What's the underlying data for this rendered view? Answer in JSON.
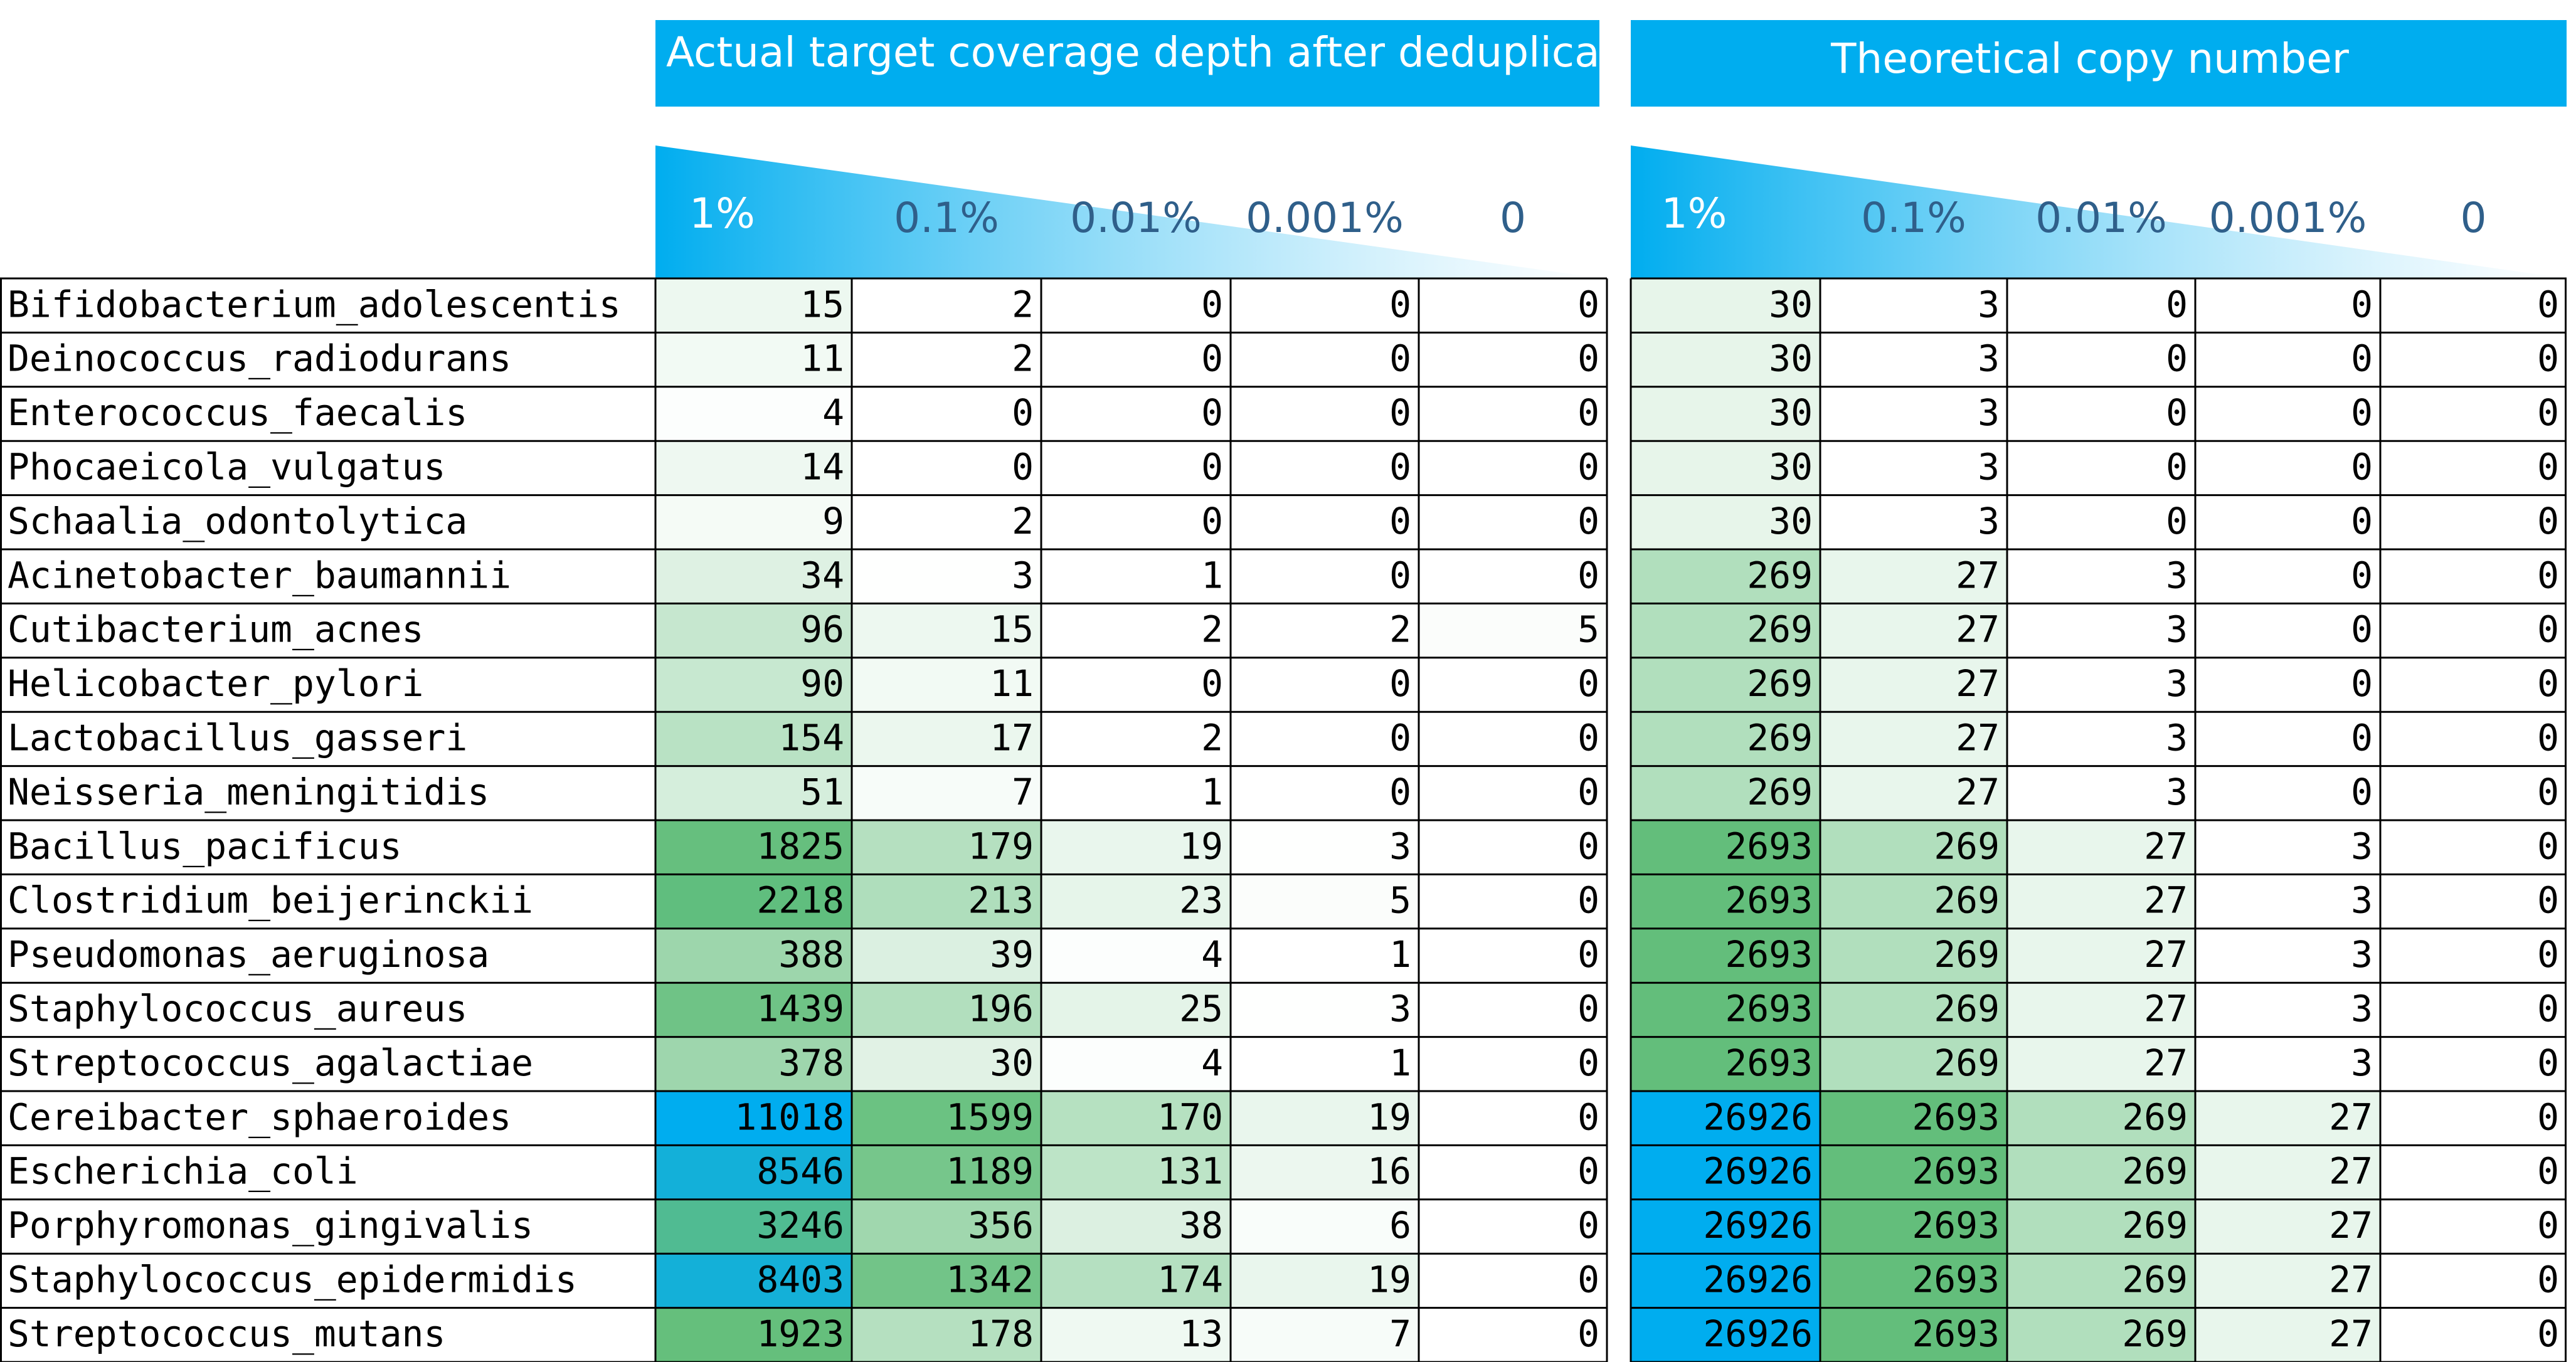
{
  "chart_data": [
    {
      "type": "heatmap",
      "title": "Actual target coverage depth after deduplication",
      "columns": [
        "1%",
        "0.1%",
        "0.01%",
        "0.001%",
        "0"
      ],
      "rows": [
        "Bifidobacterium_adolescentis",
        "Deinococcus_radiodurans",
        "Enterococcus_faecalis",
        "Phocaeicola_vulgatus",
        "Schaalia_odontolytica",
        "Acinetobacter_baumannii",
        "Cutibacterium_acnes",
        "Helicobacter_pylori",
        "Lactobacillus_gasseri",
        "Neisseria_meningitidis",
        "Bacillus_pacificus",
        "Clostridium_beijerinckii",
        "Pseudomonas_aeruginosa",
        "Staphylococcus_aureus",
        "Streptococcus_agalactiae",
        "Cereibacter_sphaeroides",
        "Escherichia_coli",
        "Porphyromonas_gingivalis",
        "Staphylococcus_epidermidis",
        "Streptococcus_mutans"
      ],
      "values": [
        [
          15,
          2,
          0,
          0,
          0
        ],
        [
          11,
          2,
          0,
          0,
          0
        ],
        [
          4,
          0,
          0,
          0,
          0
        ],
        [
          14,
          0,
          0,
          0,
          0
        ],
        [
          9,
          2,
          0,
          0,
          0
        ],
        [
          34,
          3,
          1,
          0,
          0
        ],
        [
          96,
          15,
          2,
          2,
          5
        ],
        [
          90,
          11,
          0,
          0,
          0
        ],
        [
          154,
          17,
          2,
          0,
          0
        ],
        [
          51,
          7,
          1,
          0,
          0
        ],
        [
          1825,
          179,
          19,
          3,
          0
        ],
        [
          2218,
          213,
          23,
          5,
          0
        ],
        [
          388,
          39,
          4,
          1,
          0
        ],
        [
          1439,
          196,
          25,
          3,
          0
        ],
        [
          378,
          30,
          4,
          1,
          0
        ],
        [
          11018,
          1599,
          170,
          19,
          0
        ],
        [
          8546,
          1189,
          131,
          16,
          0
        ],
        [
          3246,
          356,
          38,
          6,
          0
        ],
        [
          8403,
          1342,
          174,
          19,
          0
        ],
        [
          1923,
          178,
          13,
          7,
          0
        ]
      ]
    },
    {
      "type": "heatmap",
      "title": "Theoretical copy number",
      "columns": [
        "1%",
        "0.1%",
        "0.01%",
        "0.001%",
        "0"
      ],
      "values": [
        [
          30,
          3,
          0,
          0,
          0
        ],
        [
          30,
          3,
          0,
          0,
          0
        ],
        [
          30,
          3,
          0,
          0,
          0
        ],
        [
          30,
          3,
          0,
          0,
          0
        ],
        [
          30,
          3,
          0,
          0,
          0
        ],
        [
          269,
          27,
          3,
          0,
          0
        ],
        [
          269,
          27,
          3,
          0,
          0
        ],
        [
          269,
          27,
          3,
          0,
          0
        ],
        [
          269,
          27,
          3,
          0,
          0
        ],
        [
          269,
          27,
          3,
          0,
          0
        ],
        [
          2693,
          269,
          27,
          3,
          0
        ],
        [
          2693,
          269,
          27,
          3,
          0
        ],
        [
          2693,
          269,
          27,
          3,
          0
        ],
        [
          2693,
          269,
          27,
          3,
          0
        ],
        [
          2693,
          269,
          27,
          3,
          0
        ],
        [
          26926,
          2693,
          269,
          27,
          0
        ],
        [
          26926,
          2693,
          269,
          27,
          0
        ],
        [
          26926,
          2693,
          269,
          27,
          0
        ],
        [
          26926,
          2693,
          269,
          27,
          0
        ],
        [
          26926,
          2693,
          269,
          27,
          0
        ]
      ]
    }
  ],
  "colors": {
    "header_blue": "#00adef",
    "header_text": "#ffffff",
    "column_label": "#2f5f8a",
    "scale_low": "#ffffff",
    "scale_mid": "#63be7b",
    "scale_high": "#00adef",
    "grid": "#000000"
  }
}
